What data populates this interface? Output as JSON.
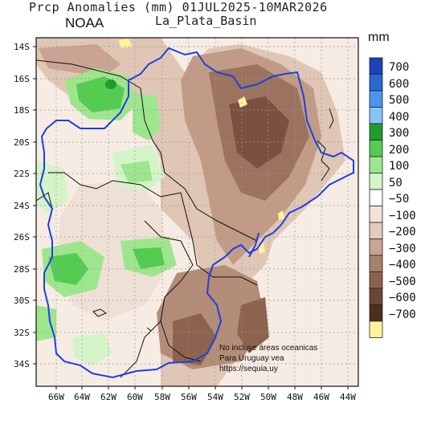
{
  "header": {
    "title": "Prcp Anomalies (mm) 01JUL2025-10MAR2026",
    "region": "La_Plata_Basin",
    "agency": "NOAA"
  },
  "legend": {
    "unit": "mm",
    "bins": [
      {
        "label": "700",
        "color": "#1a44b8"
      },
      {
        "label": "600",
        "color": "#2a68d4"
      },
      {
        "label": "500",
        "color": "#4c94ee"
      },
      {
        "label": "400",
        "color": "#86c3f7"
      },
      {
        "label": "300",
        "color": "#1d9b2b"
      },
      {
        "label": "200",
        "color": "#54cc52"
      },
      {
        "label": "100",
        "color": "#9ee68e"
      },
      {
        "label": "50",
        "color": "#d4f4c8"
      },
      {
        "label": "−50",
        "color": "#ffffff"
      },
      {
        "label": "−100",
        "color": "#f3e4da"
      },
      {
        "label": "−200",
        "color": "#e4cdbd"
      },
      {
        "label": "−300",
        "color": "#c9a493"
      },
      {
        "label": "−400",
        "color": "#a8806c"
      },
      {
        "label": "−500",
        "color": "#8c634f"
      },
      {
        "label": "−600",
        "color": "#6b4635"
      },
      {
        "label": "−700",
        "color": "#4e2e20"
      },
      {
        "label": "",
        "color": "#fff39a"
      }
    ]
  },
  "axes": {
    "lat_labels": [
      "14S",
      "16S",
      "18S",
      "20S",
      "22S",
      "24S",
      "26S",
      "28S",
      "30S",
      "32S",
      "34S"
    ],
    "lon_labels": [
      "66W",
      "64W",
      "62W",
      "60W",
      "58W",
      "56W",
      "54W",
      "52W",
      "50W",
      "48W",
      "46W",
      "44W"
    ]
  },
  "note": {
    "line1": "No incluye áreas oceanicas",
    "line2": "Para Uruguay vea",
    "line3": "https://sequia.uy"
  },
  "map_colors": {
    "basin_outline": "#1f3fe0",
    "borders": "#111111",
    "grid": "#9a9a9a"
  }
}
